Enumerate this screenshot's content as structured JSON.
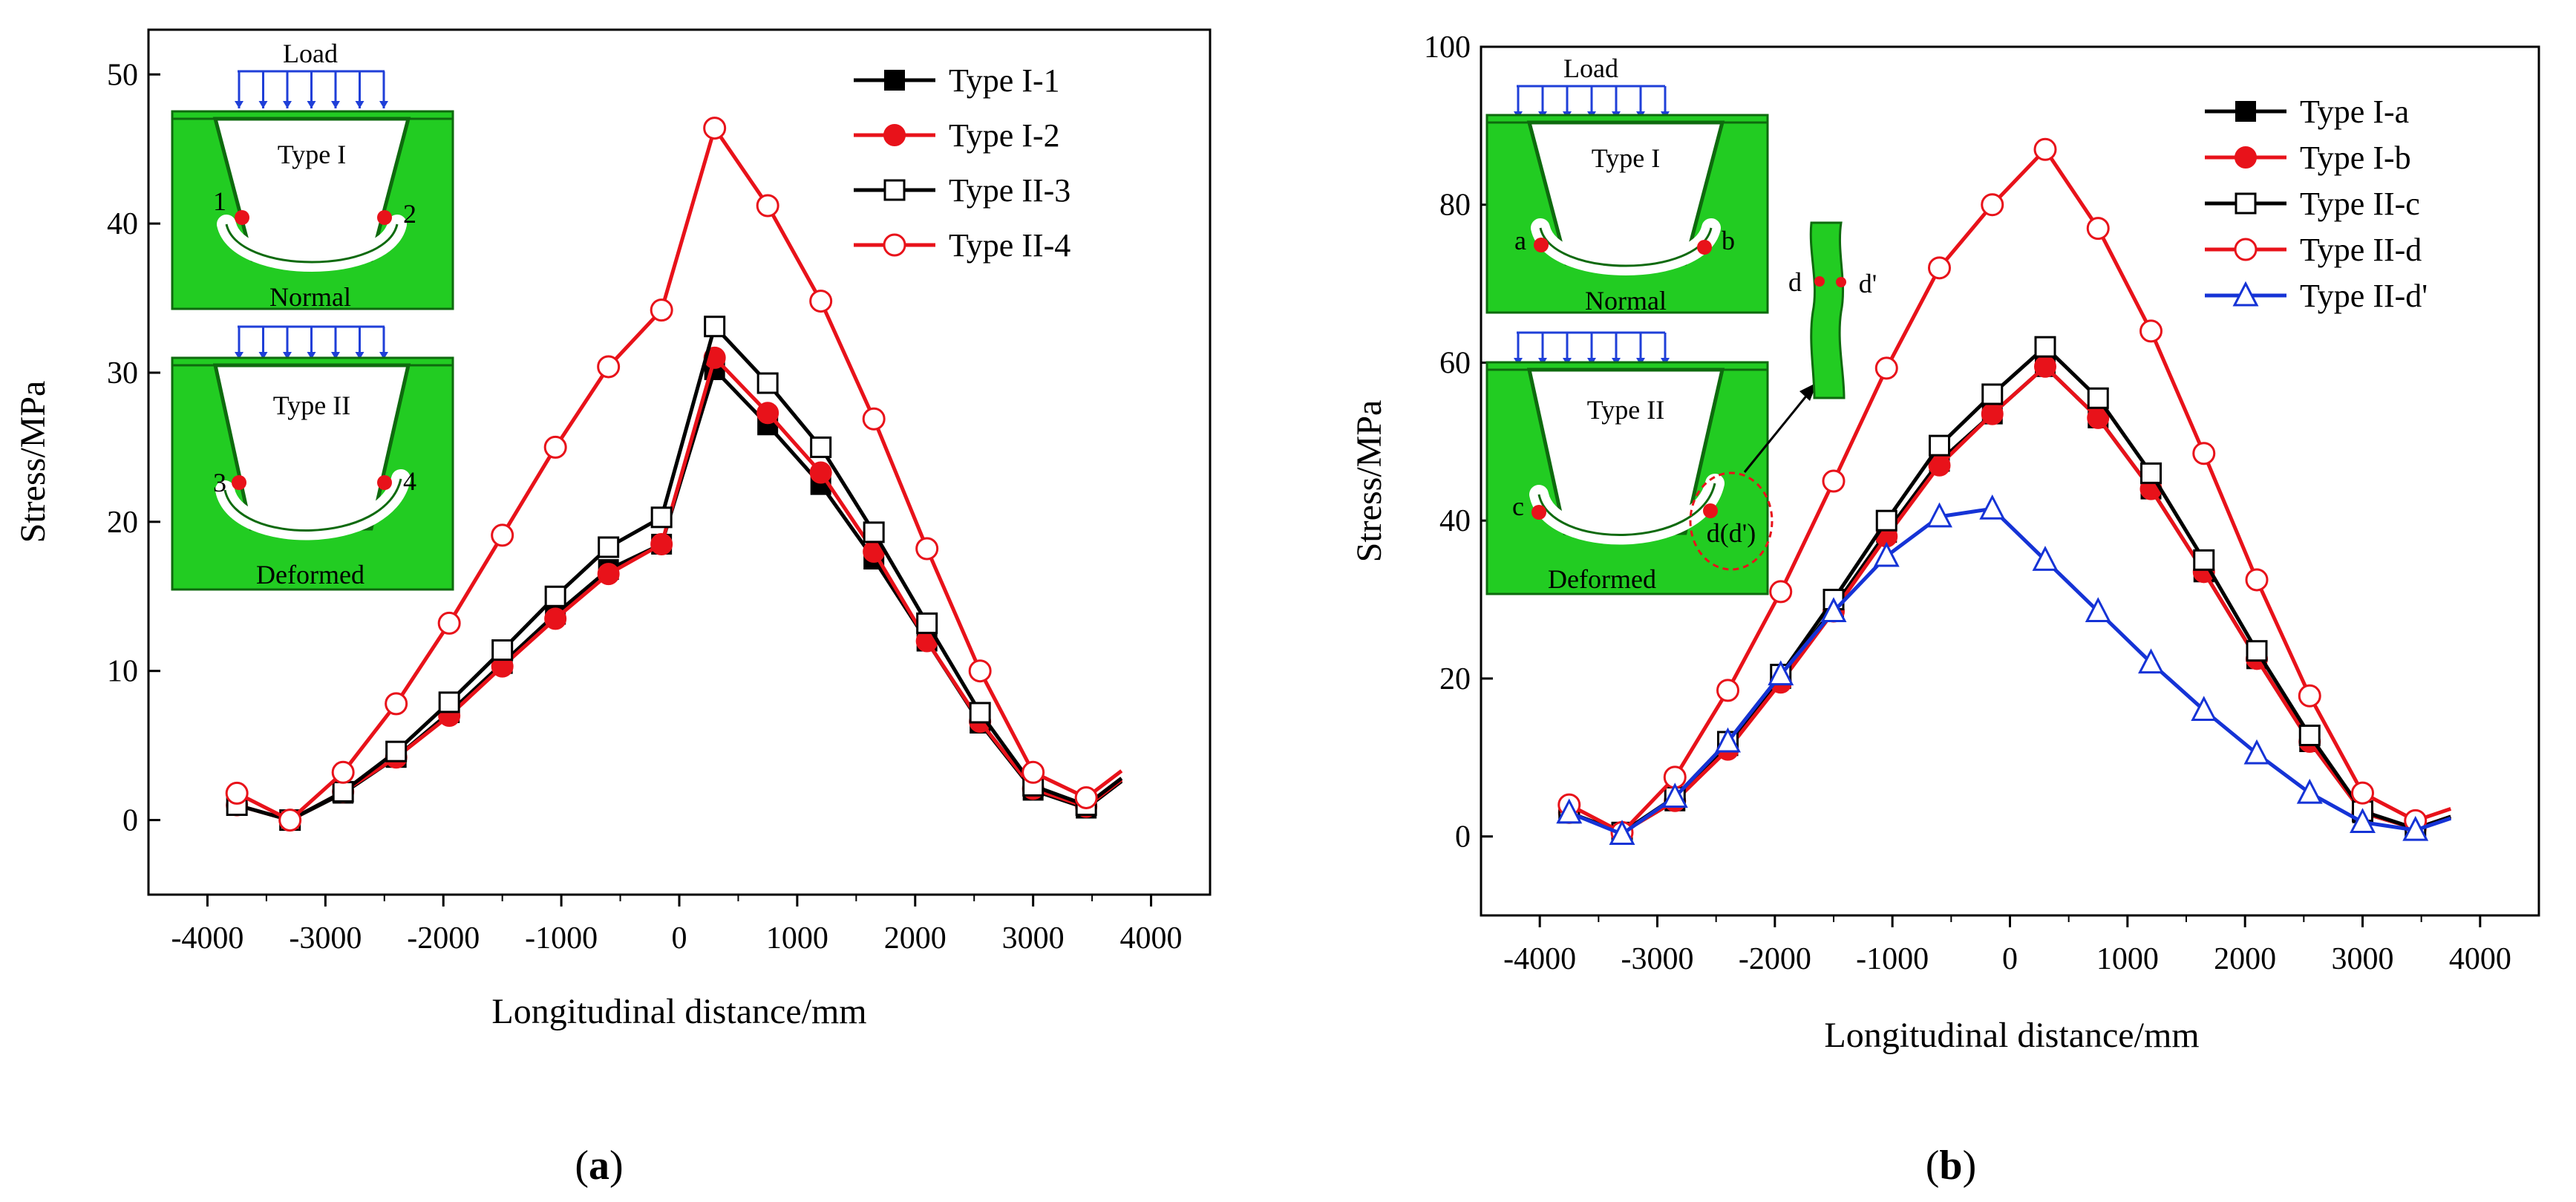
{
  "colors": {
    "black": "#000000",
    "red": "#e8121a",
    "blue": "#1533d6",
    "inset_green": "#22cc22",
    "inset_dark": "#0e6a0e",
    "load_arrow": "#1f3fd8"
  },
  "panels": [
    {
      "label": "a",
      "inset": {
        "load": "Load",
        "type1": "Type I",
        "type2": "Type II",
        "normal": "Normal",
        "deformed": "Deformed",
        "p1": "1",
        "p2": "2",
        "p3": "3",
        "p4": "4"
      }
    },
    {
      "label": "b",
      "inset": {
        "load": "Load",
        "type1": "Type I",
        "type2": "Type II",
        "normal": "Normal",
        "deformed": "Deformed",
        "pa": "a",
        "pb": "b",
        "pc": "c",
        "pd": "d(d')",
        "zoom_left": "d",
        "zoom_right": "d'"
      }
    }
  ],
  "chart_data": [
    {
      "type": "line",
      "xlabel": "Longitudinal distance/mm",
      "ylabel": "Stress/MPa",
      "xlim": [
        -4500,
        4500
      ],
      "ylim": [
        -5,
        53
      ],
      "xticks": [
        -4000,
        -3000,
        -2000,
        -1000,
        0,
        1000,
        2000,
        3000,
        4000
      ],
      "yticks": [
        0,
        10,
        20,
        30,
        40,
        50
      ],
      "legend": "top-right",
      "series": [
        {
          "name": "Type I-1",
          "color": "#000000",
          "marker": "filled-square",
          "x": [
            -3750,
            -3300,
            -2850,
            -2400,
            -1950,
            -1500,
            -1050,
            -600,
            -150,
            300,
            750,
            1200,
            1650,
            2100,
            2550,
            3000,
            3450
          ],
          "y": [
            1.0,
            0.0,
            1.8,
            4.2,
            7.2,
            10.5,
            13.8,
            16.8,
            18.5,
            30.2,
            26.5,
            22.5,
            17.5,
            12.0,
            6.5,
            2.0,
            0.8
          ]
        },
        {
          "name": "Type I-2",
          "color": "#e8121a",
          "marker": "filled-circle",
          "x": [
            -3750,
            -3300,
            -2850,
            -2400,
            -1950,
            -1500,
            -1050,
            -600,
            -150,
            300,
            750,
            1200,
            1650,
            2100,
            2550,
            3000,
            3450
          ],
          "y": [
            1.0,
            0.0,
            1.9,
            4.2,
            7.0,
            10.3,
            13.5,
            16.5,
            18.5,
            31.0,
            27.3,
            23.3,
            18.0,
            12.0,
            6.6,
            2.1,
            0.9
          ]
        },
        {
          "name": "Type II-3",
          "color": "#000000",
          "marker": "open-square",
          "x": [
            -3750,
            -3300,
            -2850,
            -2400,
            -1950,
            -1500,
            -1050,
            -600,
            -150,
            300,
            750,
            1200,
            1650,
            2100,
            2550,
            3000,
            3450
          ],
          "y": [
            1.0,
            0.0,
            1.9,
            4.6,
            7.9,
            11.4,
            15.0,
            18.3,
            20.3,
            33.1,
            29.3,
            25.0,
            19.3,
            13.2,
            7.2,
            2.3,
            1.0
          ]
        },
        {
          "name": "Type II-4",
          "color": "#e8121a",
          "marker": "open-circle",
          "x": [
            -3750,
            -3300,
            -2850,
            -2400,
            -1950,
            -1500,
            -1050,
            -600,
            -150,
            300,
            750,
            1200,
            1650,
            2100,
            2550,
            3000,
            3450
          ],
          "y": [
            1.8,
            0.0,
            3.2,
            7.8,
            13.2,
            19.1,
            25.0,
            30.4,
            34.2,
            46.4,
            41.2,
            34.8,
            26.9,
            18.2,
            10.0,
            3.2,
            1.5
          ]
        }
      ]
    },
    {
      "type": "line",
      "xlabel": "Longitudinal distance/mm",
      "ylabel": "Stress/MPa",
      "xlim": [
        -4500,
        4500
      ],
      "ylim": [
        -10,
        100
      ],
      "xticks": [
        -4000,
        -3000,
        -2000,
        -1000,
        0,
        1000,
        2000,
        3000,
        4000
      ],
      "yticks": [
        0,
        20,
        40,
        60,
        80,
        100
      ],
      "legend": "top-right",
      "series": [
        {
          "name": "Type I-a",
          "color": "#000000",
          "marker": "filled-square",
          "x": [
            -3750,
            -3300,
            -2850,
            -2400,
            -1950,
            -1500,
            -1050,
            -600,
            -150,
            300,
            750,
            1200,
            1650,
            2100,
            2550,
            3000,
            3450
          ],
          "y": [
            3.0,
            0.5,
            4.5,
            11.5,
            20.0,
            29.0,
            38.5,
            47.5,
            53.5,
            59.5,
            53.0,
            44.0,
            33.5,
            22.5,
            12.0,
            3.0,
            1.0
          ]
        },
        {
          "name": "Type I-b",
          "color": "#e8121a",
          "marker": "filled-circle",
          "x": [
            -3750,
            -3300,
            -2850,
            -2400,
            -1950,
            -1500,
            -1050,
            -600,
            -150,
            300,
            750,
            1200,
            1650,
            2100,
            2550,
            3000,
            3450
          ],
          "y": [
            3.0,
            0.5,
            4.5,
            11.0,
            19.5,
            28.5,
            38.0,
            47.0,
            53.5,
            59.5,
            53.0,
            44.0,
            33.5,
            22.5,
            12.0,
            3.0,
            1.0
          ]
        },
        {
          "name": "Type II-c",
          "color": "#000000",
          "marker": "open-square",
          "x": [
            -3750,
            -3300,
            -2850,
            -2400,
            -1950,
            -1500,
            -1050,
            -600,
            -150,
            300,
            750,
            1200,
            1650,
            2100,
            2550,
            3000,
            3450
          ],
          "y": [
            3.0,
            0.5,
            5.0,
            12.0,
            20.5,
            30.0,
            40.0,
            49.5,
            56.0,
            62.0,
            55.5,
            46.0,
            35.0,
            23.5,
            12.8,
            3.2,
            1.0
          ]
        },
        {
          "name": "Type II-d",
          "color": "#e8121a",
          "marker": "open-circle",
          "x": [
            -3750,
            -3300,
            -2850,
            -2400,
            -1950,
            -1500,
            -1050,
            -600,
            -150,
            300,
            750,
            1200,
            1650,
            2100,
            2550,
            3000,
            3450
          ],
          "y": [
            4.0,
            0.5,
            7.5,
            18.5,
            31.0,
            45.0,
            59.3,
            72.0,
            80.0,
            87.0,
            77.0,
            64.0,
            48.5,
            32.5,
            17.8,
            5.5,
            2.0
          ]
        },
        {
          "name": "Type II-d'",
          "color": "#1533d6",
          "marker": "open-triangle",
          "x": [
            -3750,
            -3300,
            -2850,
            -2400,
            -1950,
            -1500,
            -1050,
            -600,
            -150,
            300,
            750,
            1200,
            1650,
            2100,
            2550,
            3000,
            3450
          ],
          "y": [
            3.0,
            0.3,
            5.0,
            12.0,
            20.5,
            28.5,
            35.5,
            40.5,
            41.5,
            35.0,
            28.5,
            22.0,
            16.0,
            10.5,
            5.5,
            1.8,
            0.8
          ]
        }
      ]
    }
  ]
}
